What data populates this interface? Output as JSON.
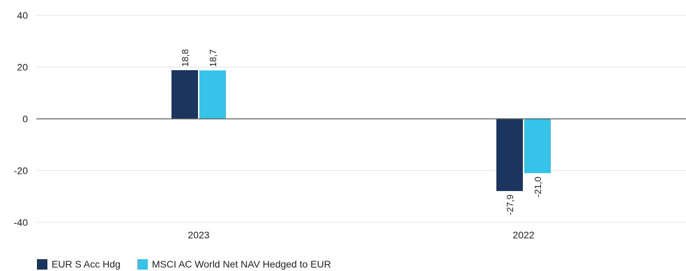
{
  "chart_data": {
    "type": "bar",
    "categories": [
      "2023",
      "2022"
    ],
    "series": [
      {
        "name": "EUR S Acc Hdg",
        "values": [
          18.8,
          -27.9
        ],
        "labels": [
          "18,8",
          "-27,9"
        ],
        "color": "#1b355e"
      },
      {
        "name": "MSCI AC World Net NAV Hedged to EUR",
        "values": [
          18.7,
          -21.0
        ],
        "labels": [
          "18,7",
          "-21,0"
        ],
        "color": "#35c3ea"
      }
    ],
    "ylim": [
      -40,
      40
    ],
    "yticks": [
      40,
      20,
      0,
      -20,
      -40
    ],
    "ytick_labels": [
      "40",
      "20",
      "0",
      "-20",
      "-40"
    ],
    "grid": true,
    "legend_position": "bottom-left",
    "title": "",
    "xlabel": "",
    "ylabel": ""
  },
  "legend": {
    "items": [
      {
        "label": "EUR S Acc Hdg",
        "color": "#1b355e"
      },
      {
        "label": "MSCI AC World Net NAV Hedged to EUR",
        "color": "#35c3ea"
      }
    ]
  }
}
